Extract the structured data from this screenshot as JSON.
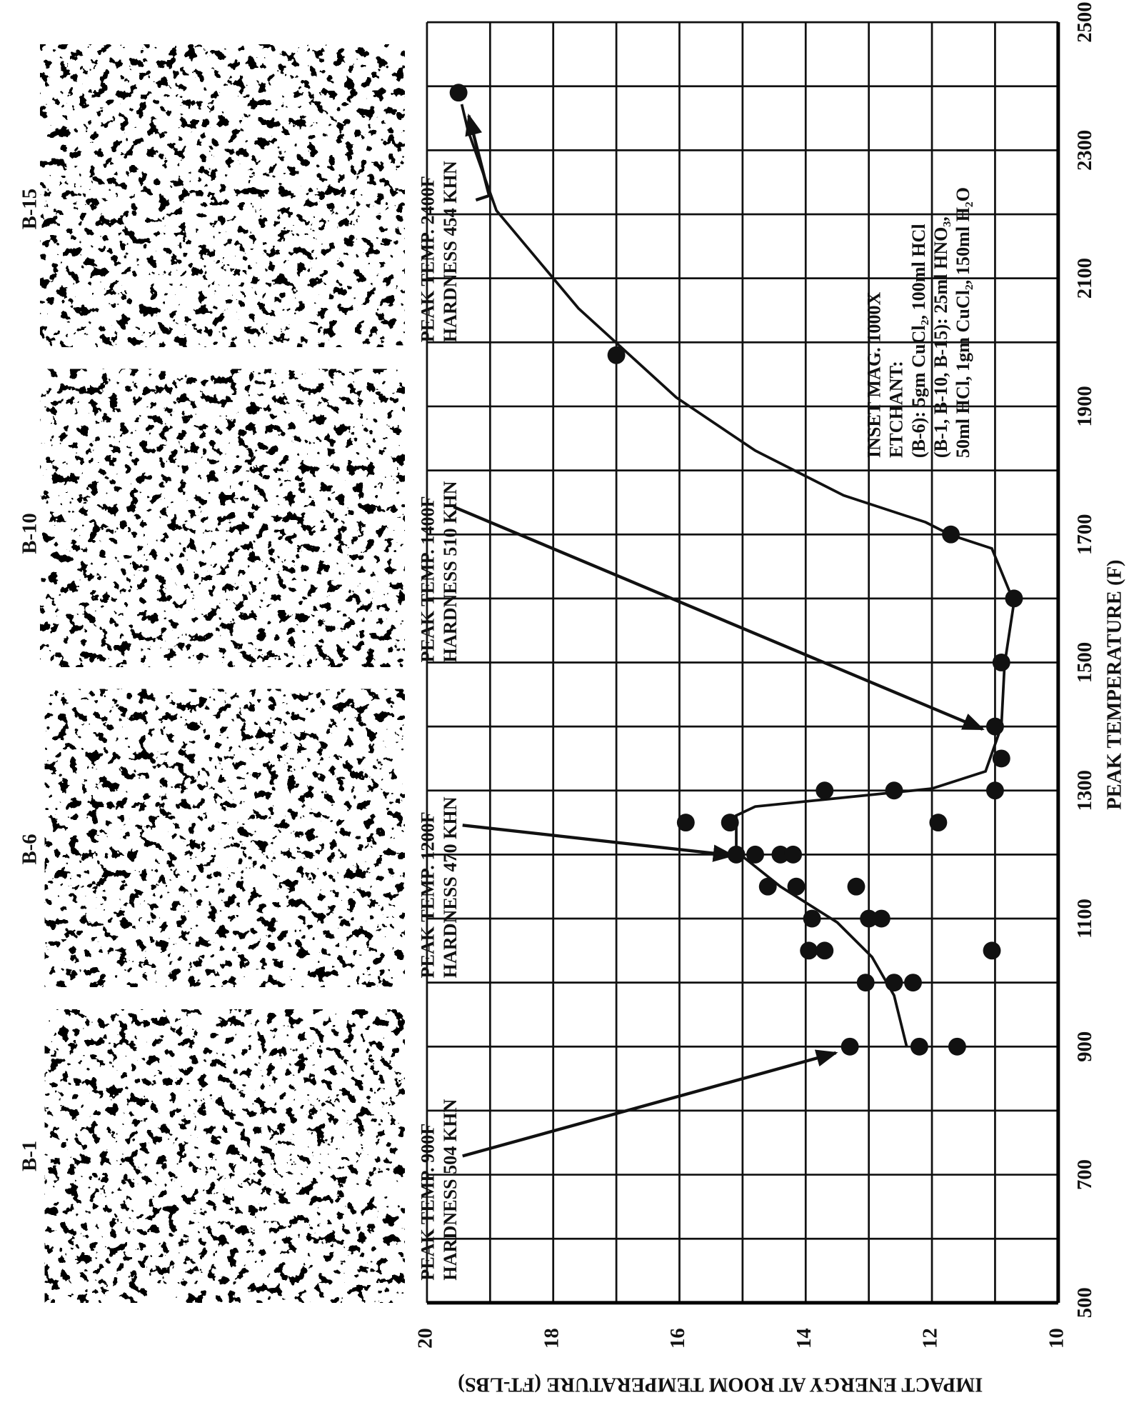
{
  "chart_data": {
    "type": "scatter",
    "xlabel": "PEAK TEMPERATURE (F)",
    "ylabel": "IMPACT ENERGY AT ROOM TEMPERATURE (FT-LBS)",
    "x": [
      2390,
      1980,
      1700,
      1600,
      1500,
      1400,
      1350,
      1300,
      1300,
      1300,
      1250,
      1250,
      1250,
      1200,
      1200,
      1200,
      1200,
      1150,
      1150,
      1150,
      1100,
      1100,
      1100,
      1050,
      1050,
      1050,
      1000,
      1000,
      1000,
      900,
      900,
      900
    ],
    "values": [
      19.5,
      17.0,
      11.7,
      10.7,
      10.9,
      11.0,
      10.9,
      11.0,
      13.7,
      12.6,
      15.9,
      15.2,
      11.9,
      15.1,
      14.8,
      14.4,
      14.2,
      14.6,
      14.15,
      13.2,
      13.9,
      13.0,
      12.8,
      13.95,
      13.7,
      11.05,
      13.05,
      12.6,
      12.3,
      13.3,
      12.2,
      11.6
    ],
    "curve": {
      "x": [
        900,
        980,
        1040,
        1094,
        1150,
        1205,
        1261,
        1275,
        1289,
        1303,
        1330,
        1400,
        1497,
        1594,
        1678,
        1699,
        1719,
        1761,
        1831,
        1914,
        2053,
        2206,
        2331,
        2372
      ],
      "values": [
        12.4,
        12.6,
        12.95,
        13.5,
        14.4,
        15.1,
        15.1,
        14.8,
        13.4,
        12.0,
        11.15,
        10.9,
        10.85,
        10.7,
        11.05,
        11.7,
        12.1,
        13.4,
        14.8,
        16.05,
        17.6,
        18.9,
        19.35,
        19.45
      ]
    },
    "color": "#111111",
    "xlim": [
      500,
      2500
    ],
    "xticks": [
      500,
      700,
      900,
      1100,
      1300,
      1500,
      1700,
      1900,
      2100,
      2300,
      2500
    ],
    "ylim": [
      10,
      20
    ],
    "yticks": [
      20,
      18,
      16,
      14,
      12,
      10
    ],
    "grid": true,
    "insets": [
      {
        "label": "B-1",
        "peak_temp": "PEAK TEMP. 900F",
        "hardness": "HARDNESS 504 KHN"
      },
      {
        "label": "B-6",
        "peak_temp": "PEAK TEMP. 1200F",
        "hardness": "HARDNESS 470 KHN"
      },
      {
        "label": "B-10",
        "peak_temp": "PEAK TEMP. 1400F",
        "hardness": "HARDNESS 510 KHN"
      },
      {
        "label": "B-15",
        "peak_temp": "PEAK TEMP. 2400F",
        "hardness": "HARDNESS 454 KHN"
      }
    ],
    "notes": [
      "INSET MAG. 1000X",
      "ETCHANT:",
      "(B-6): 5gm CuCl₂, 100ml HCl",
      "(B-1, B-10, B-15): 25ml HNO₃,",
      "50ml HCl, 1gm CuCl₂, 150ml H₂O"
    ]
  }
}
